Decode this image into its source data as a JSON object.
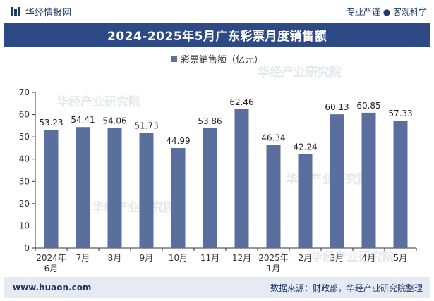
{
  "header": {
    "brand": "华经情报网",
    "slogan": "专业严谨 ● 客观科学"
  },
  "colors": {
    "bar": "#5a6f9e",
    "title_bg": "#2e4a86",
    "footer_bg": "#e6ebf3"
  },
  "watermark": "华经产业研究院",
  "footer": {
    "site": "www.huaon.com",
    "source": "数据来源：财政部，华经产业研究院整理"
  },
  "chart_data": {
    "type": "bar",
    "title": "2024-2025年5月广东彩票月度销售额",
    "categories": [
      "2024年\n6月",
      "7月",
      "8月",
      "9月",
      "10月",
      "11月",
      "12月",
      "2025年\n1月",
      "2月",
      "3月",
      "4月",
      "5月"
    ],
    "series": [
      {
        "name": "彩票销售额（亿元）",
        "values": [
          53.23,
          54.41,
          54.06,
          51.73,
          44.99,
          53.86,
          62.46,
          46.34,
          42.24,
          60.13,
          60.85,
          57.33
        ]
      }
    ],
    "ylim": [
      0,
      70
    ],
    "yticks": [
      0,
      10,
      20,
      30,
      40,
      50,
      60,
      70
    ],
    "legend": "top",
    "grid": false
  }
}
